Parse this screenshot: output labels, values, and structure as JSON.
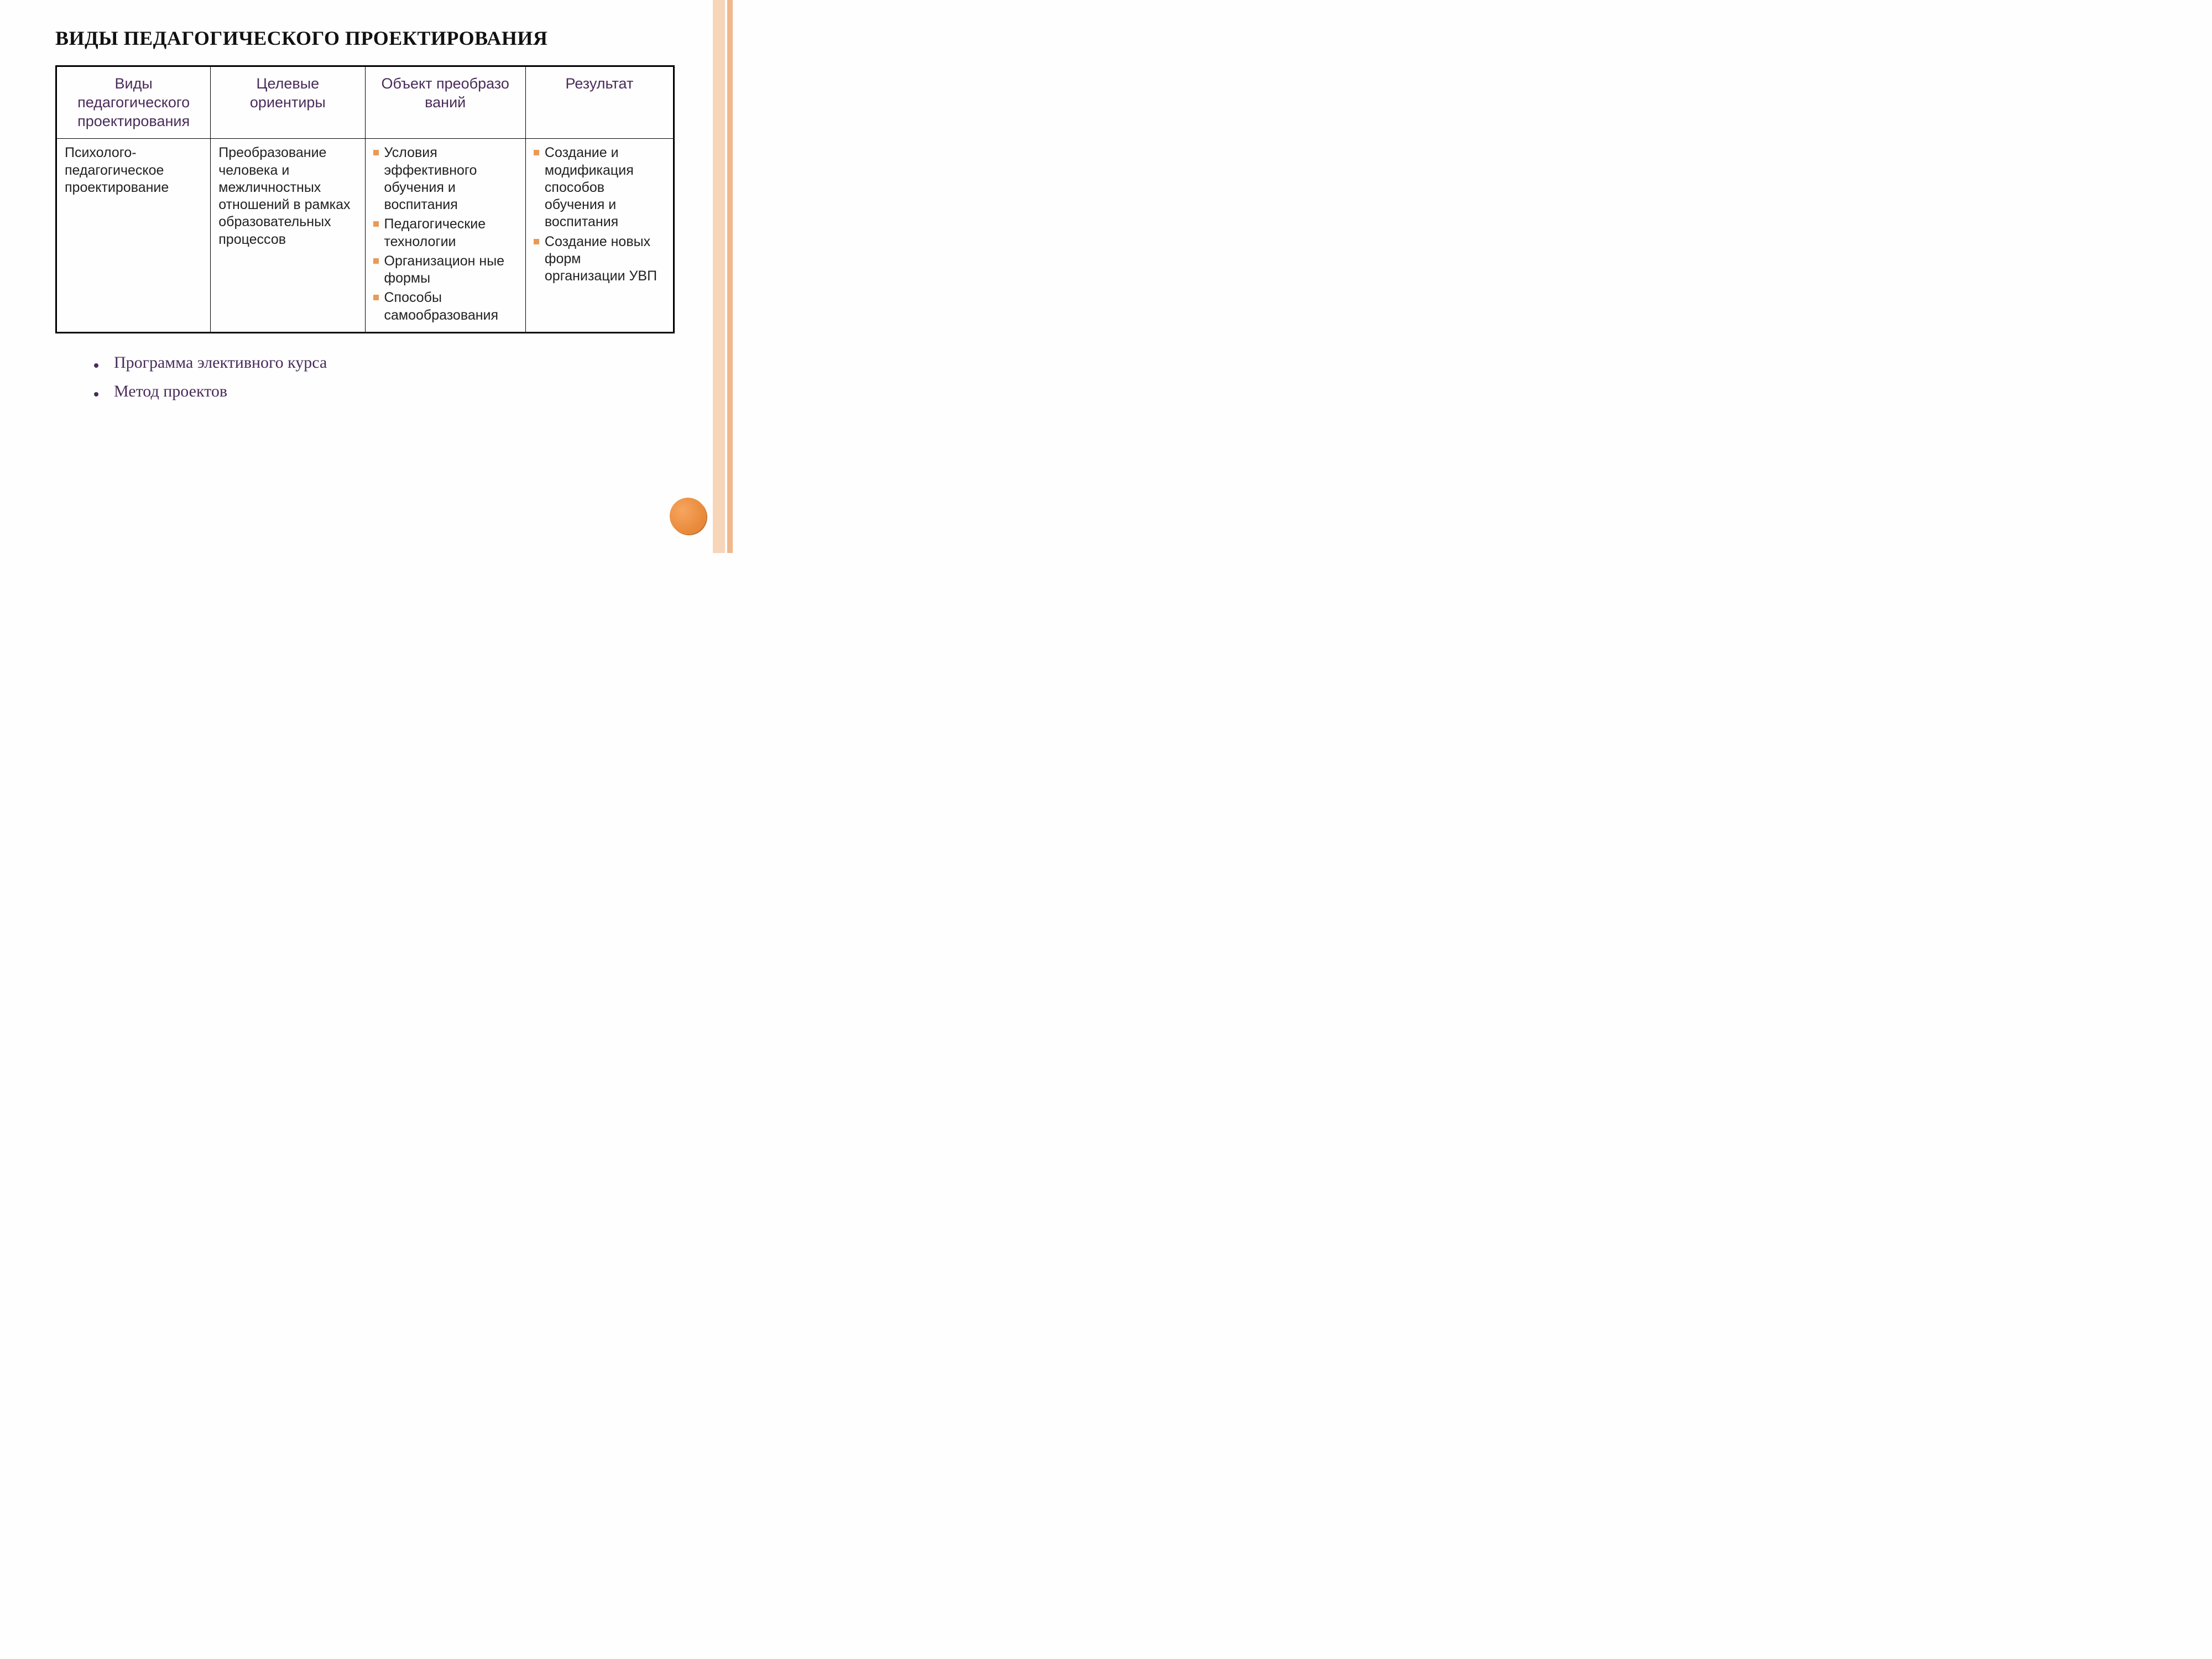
{
  "title": "ВИДЫ ПЕДАГОГИЧЕСКОГО ПРОЕКТИРОВАНИЯ",
  "table": {
    "columns": [
      "Виды педагогического проектирования",
      "Целевые ориентиры",
      "Объект преобразо ваний",
      "Результат"
    ],
    "col_widths_pct": [
      25,
      25,
      26,
      24
    ],
    "header_color": "#4a2c5a",
    "header_fontsize": 27,
    "cell_fontsize": 25,
    "border_color": "#000000",
    "bullet_color": "#ea9a56",
    "row": {
      "c1_text": "Психолого-педагогическое проектирование",
      "c2_text": "Преобразование человека и межличностных отношений в рамках образовательных процессов",
      "c3_items": [
        "Условия эффективного обучения и воспитания",
        "Педагогические технологии",
        "Организацион ные формы",
        "Способы самообразования"
      ],
      "c4_items": [
        "Создание и модификация способов обучения и воспитания",
        "Создание новых форм организации УВП"
      ]
    }
  },
  "below_bullets": [
    "Программа элективного курса",
    "Метод проектов"
  ],
  "decor": {
    "stripe_outer_color": "#f0b88a",
    "stripe_inner_color": "#f7d5b9",
    "ball_gradient_from": "#f7a55f",
    "ball_gradient_to": "#e88838",
    "bullet_dot_color": "#4a2c5a",
    "below_text_color": "#4a2c5a",
    "below_fontsize": 30,
    "title_fontsize": 36
  }
}
